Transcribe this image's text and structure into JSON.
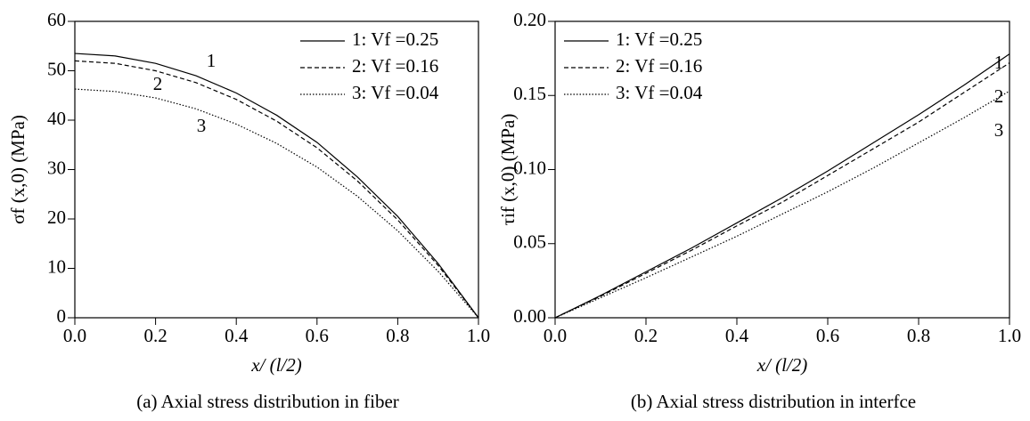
{
  "chart_data": [
    {
      "type": "line",
      "caption": "(a) Axial stress distribution in fiber",
      "xlabel": "x/ (l/2)",
      "ylabel": "σf (x,0) (MPa)",
      "x": [
        0,
        0.1,
        0.2,
        0.3,
        0.4,
        0.5,
        0.6,
        0.7,
        0.8,
        0.9,
        1.0
      ],
      "series": [
        {
          "name": "1: Vf =0.25",
          "color": "#000000",
          "dash": "solid",
          "values": [
            53.5,
            53.0,
            51.5,
            49.0,
            45.5,
            41.0,
            35.5,
            28.5,
            20.5,
            11.0,
            0
          ]
        },
        {
          "name": "2: Vf =0.16",
          "color": "#000000",
          "dash": "dashed",
          "values": [
            52.0,
            51.5,
            50.0,
            47.6,
            44.2,
            39.8,
            34.4,
            27.7,
            19.8,
            10.6,
            0
          ]
        },
        {
          "name": "3: Vf =0.04",
          "color": "#000000",
          "dash": "dotted",
          "values": [
            46.3,
            45.8,
            44.5,
            42.3,
            39.2,
            35.3,
            30.5,
            24.6,
            17.6,
            9.4,
            0
          ]
        }
      ],
      "annotations": [
        "1",
        "2",
        "3"
      ],
      "xlim": [
        0,
        1
      ],
      "ylim": [
        0,
        60
      ],
      "xticks": [
        {
          "value": 0,
          "label": "0.0"
        },
        {
          "value": 0.2,
          "label": "0.2"
        },
        {
          "value": 0.4,
          "label": "0.4"
        },
        {
          "value": 0.6,
          "label": "0.6"
        },
        {
          "value": 0.8,
          "label": "0.8"
        },
        {
          "value": 1,
          "label": "1.0"
        }
      ],
      "yticks": [
        0,
        10,
        20,
        30,
        40,
        50,
        60
      ],
      "legend": "upper right"
    },
    {
      "type": "line",
      "caption": "(b) Axial stress distribution in interfce",
      "xlabel": "x/ (l/2)",
      "ylabel": "τif (x,0) (MPa)",
      "x": [
        0,
        0.1,
        0.2,
        0.3,
        0.4,
        0.5,
        0.6,
        0.7,
        0.8,
        0.9,
        1.0
      ],
      "series": [
        {
          "name": "1: Vf =0.25",
          "color": "#000000",
          "dash": "solid",
          "values": [
            0,
            0.015,
            0.031,
            0.047,
            0.064,
            0.081,
            0.099,
            0.118,
            0.137,
            0.157,
            0.178
          ]
        },
        {
          "name": "2: Vf =0.16",
          "color": "#000000",
          "dash": "dashed",
          "values": [
            0,
            0.0145,
            0.03,
            0.0455,
            0.062,
            0.078,
            0.096,
            0.114,
            0.132,
            0.152,
            0.172
          ]
        },
        {
          "name": "3: Vf =0.04",
          "color": "#000000",
          "dash": "dotted",
          "values": [
            0,
            0.0135,
            0.027,
            0.041,
            0.055,
            0.07,
            0.085,
            0.101,
            0.118,
            0.135,
            0.153
          ]
        }
      ],
      "annotations": [
        "1",
        "2",
        "3"
      ],
      "xlim": [
        0,
        1
      ],
      "ylim": [
        0,
        0.2
      ],
      "xticks": [
        {
          "value": 0,
          "label": "0.0"
        },
        {
          "value": 0.2,
          "label": "0.2"
        },
        {
          "value": 0.4,
          "label": "0.4"
        },
        {
          "value": 0.6,
          "label": "0.6"
        },
        {
          "value": 0.8,
          "label": "0.8"
        },
        {
          "value": 1,
          "label": "1.0"
        }
      ],
      "yticks": [
        {
          "value": 0,
          "label": "0.00"
        },
        {
          "value": 0.05,
          "label": "0.05"
        },
        {
          "value": 0.1,
          "label": "0.10"
        },
        {
          "value": 0.15,
          "label": "0.15"
        },
        {
          "value": 0.2,
          "label": "0.20"
        }
      ],
      "legend": "upper left"
    }
  ]
}
